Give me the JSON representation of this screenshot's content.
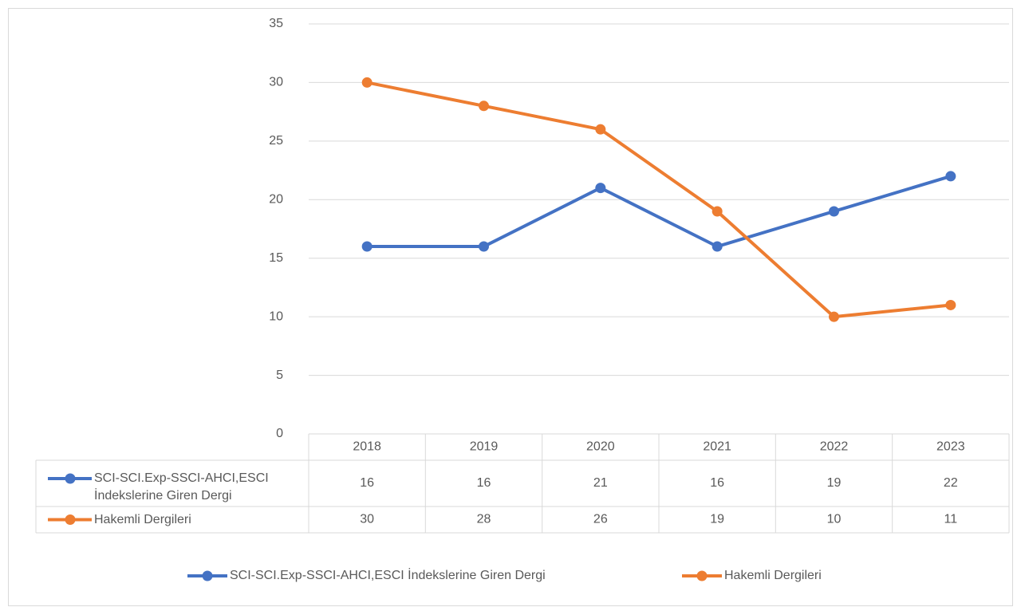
{
  "chart_data": {
    "type": "line",
    "categories": [
      "2018",
      "2019",
      "2020",
      "2021",
      "2022",
      "2023"
    ],
    "series": [
      {
        "name": "SCI-SCI.Exp-SSCI-AHCI,ESCI İndekslerine Giren Dergi",
        "color": "#4472c4",
        "values": [
          16,
          16,
          21,
          16,
          19,
          22
        ]
      },
      {
        "name": "Hakemli Dergileri",
        "color": "#ed7d31",
        "values": [
          30,
          28,
          26,
          19,
          10,
          11
        ]
      }
    ],
    "ylim": [
      0,
      35
    ],
    "yticks": [
      0,
      5,
      10,
      15,
      20,
      25,
      30,
      35
    ],
    "grid": true,
    "legend": "bottom"
  }
}
